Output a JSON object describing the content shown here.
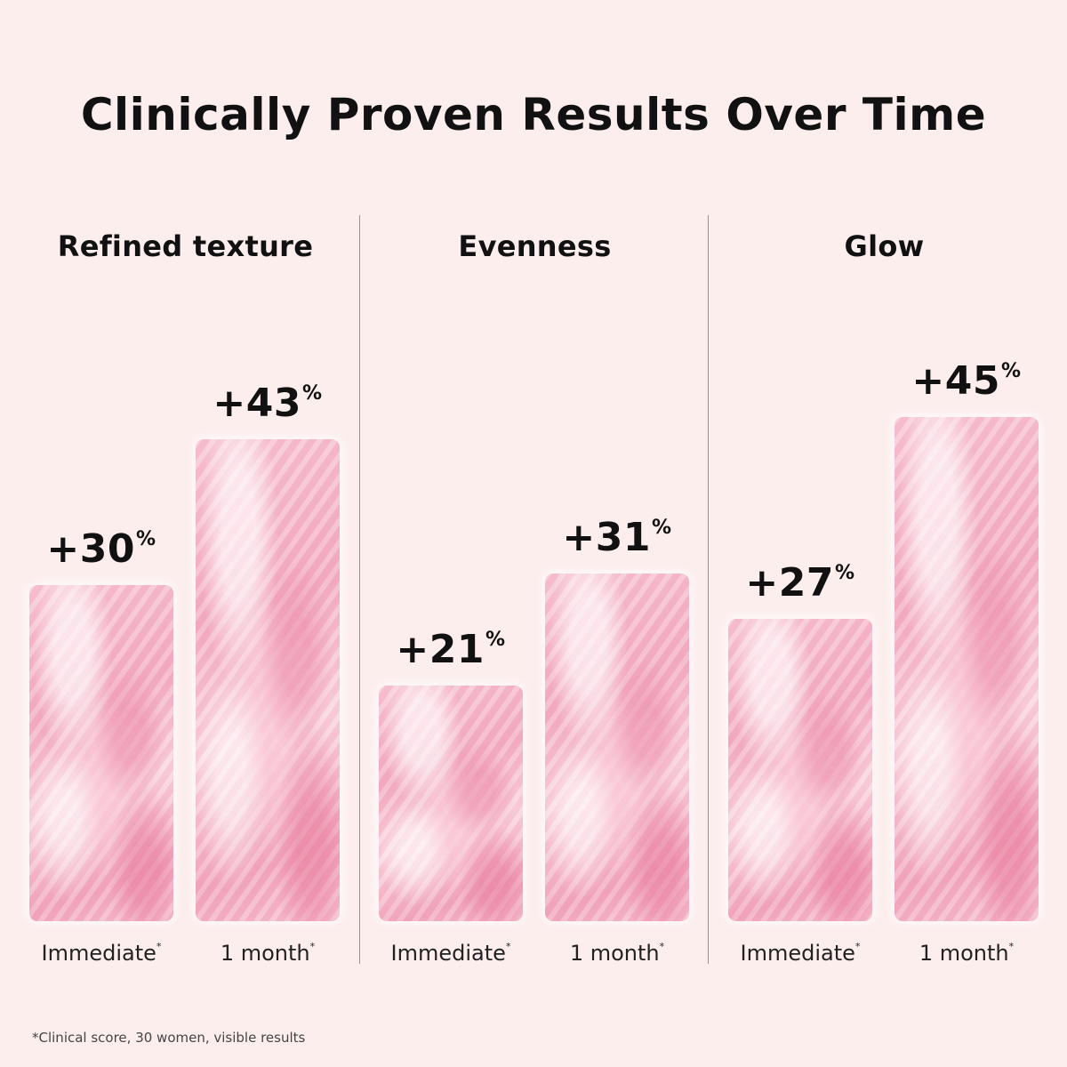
{
  "title": "Clinically Proven Results Over Time",
  "chart_data": [
    {
      "type": "bar",
      "title": "Refined texture",
      "categories": [
        "Immediate",
        "1 month"
      ],
      "values": [
        30,
        43
      ],
      "labels": [
        "+30",
        "+43"
      ]
    },
    {
      "type": "bar",
      "title": "Evenness",
      "categories": [
        "Immediate",
        "1 month"
      ],
      "values": [
        21,
        31
      ],
      "labels": [
        "+21",
        "+31"
      ]
    },
    {
      "type": "bar",
      "title": "Glow",
      "categories": [
        "Immediate",
        "1 month"
      ],
      "values": [
        27,
        45
      ],
      "labels": [
        "+27",
        "+45"
      ]
    }
  ],
  "percent_symbol": "%",
  "asterisk": "*",
  "footnote": "*Clinical score, 30 women, visible results",
  "colors": {
    "background": "#fdeeee",
    "bar": "#f2a9bf",
    "divider": "#9a9090"
  }
}
